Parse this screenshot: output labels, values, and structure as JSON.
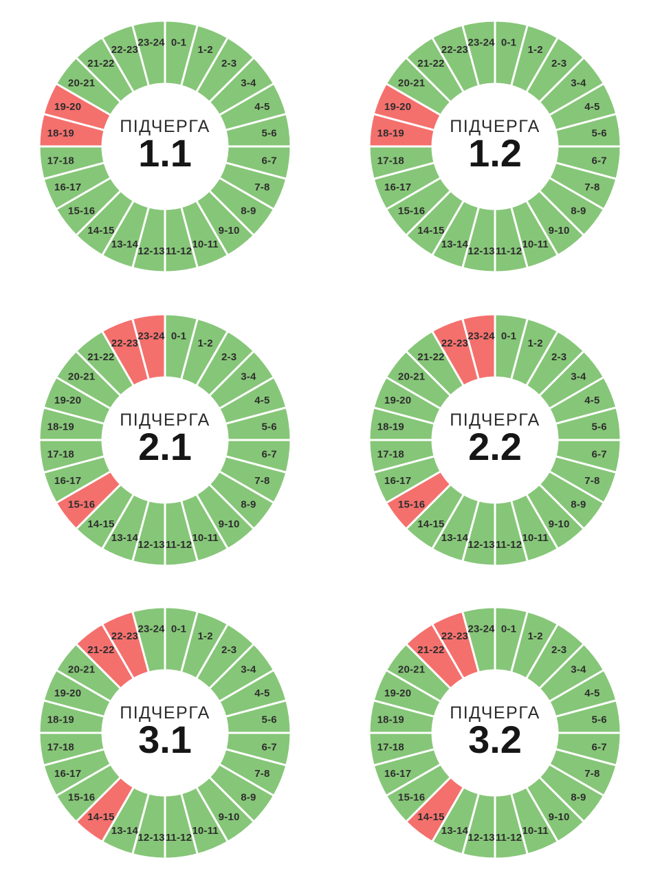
{
  "palette": {
    "power_on": "#86C678",
    "power_off": "#F4706D",
    "divider": "#FFFFFF",
    "hour_label_color": "#2D2D2D",
    "center_title_color": "#2B2B2B",
    "center_value_color": "#161616",
    "background": "#FFFFFF"
  },
  "hour_labels": [
    "0-1",
    "1-2",
    "2-3",
    "3-4",
    "4-5",
    "5-6",
    "6-7",
    "7-8",
    "8-9",
    "9-10",
    "10-11",
    "11-12",
    "12-13",
    "13-14",
    "14-15",
    "15-16",
    "16-17",
    "17-18",
    "18-19",
    "19-20",
    "20-21",
    "21-22",
    "22-23",
    "23-24"
  ],
  "chart_data": [
    {
      "type": "pie",
      "title": "ПІДЧЕРГА 1.1",
      "center_label": "ПІДЧЕРГА",
      "center_value": "1.1",
      "categories": [
        "0-1",
        "1-2",
        "2-3",
        "3-4",
        "4-5",
        "5-6",
        "6-7",
        "7-8",
        "8-9",
        "9-10",
        "10-11",
        "11-12",
        "12-13",
        "13-14",
        "14-15",
        "15-16",
        "16-17",
        "17-18",
        "18-19",
        "19-20",
        "20-21",
        "21-22",
        "22-23",
        "23-24"
      ],
      "values": [
        1,
        1,
        1,
        1,
        1,
        1,
        1,
        1,
        1,
        1,
        1,
        1,
        1,
        1,
        1,
        1,
        1,
        1,
        1,
        1,
        1,
        1,
        1,
        1
      ],
      "statuses": [
        "on",
        "on",
        "on",
        "on",
        "on",
        "on",
        "on",
        "on",
        "on",
        "on",
        "on",
        "on",
        "on",
        "on",
        "on",
        "on",
        "on",
        "on",
        "off",
        "off",
        "on",
        "on",
        "on",
        "on"
      ],
      "off_hours": [
        "18-19",
        "19-20"
      ]
    },
    {
      "type": "pie",
      "title": "ПІДЧЕРГА 1.2",
      "center_label": "ПІДЧЕРГА",
      "center_value": "1.2",
      "categories": [
        "0-1",
        "1-2",
        "2-3",
        "3-4",
        "4-5",
        "5-6",
        "6-7",
        "7-8",
        "8-9",
        "9-10",
        "10-11",
        "11-12",
        "12-13",
        "13-14",
        "14-15",
        "15-16",
        "16-17",
        "17-18",
        "18-19",
        "19-20",
        "20-21",
        "21-22",
        "22-23",
        "23-24"
      ],
      "values": [
        1,
        1,
        1,
        1,
        1,
        1,
        1,
        1,
        1,
        1,
        1,
        1,
        1,
        1,
        1,
        1,
        1,
        1,
        1,
        1,
        1,
        1,
        1,
        1
      ],
      "statuses": [
        "on",
        "on",
        "on",
        "on",
        "on",
        "on",
        "on",
        "on",
        "on",
        "on",
        "on",
        "on",
        "on",
        "on",
        "on",
        "on",
        "on",
        "on",
        "off",
        "off",
        "on",
        "on",
        "on",
        "on"
      ],
      "off_hours": [
        "18-19",
        "19-20"
      ]
    },
    {
      "type": "pie",
      "title": "ПІДЧЕРГА 2.1",
      "center_label": "ПІДЧЕРГА",
      "center_value": "2.1",
      "categories": [
        "0-1",
        "1-2",
        "2-3",
        "3-4",
        "4-5",
        "5-6",
        "6-7",
        "7-8",
        "8-9",
        "9-10",
        "10-11",
        "11-12",
        "12-13",
        "13-14",
        "14-15",
        "15-16",
        "16-17",
        "17-18",
        "18-19",
        "19-20",
        "20-21",
        "21-22",
        "22-23",
        "23-24"
      ],
      "values": [
        1,
        1,
        1,
        1,
        1,
        1,
        1,
        1,
        1,
        1,
        1,
        1,
        1,
        1,
        1,
        1,
        1,
        1,
        1,
        1,
        1,
        1,
        1,
        1
      ],
      "statuses": [
        "on",
        "on",
        "on",
        "on",
        "on",
        "on",
        "on",
        "on",
        "on",
        "on",
        "on",
        "on",
        "on",
        "on",
        "on",
        "off",
        "on",
        "on",
        "on",
        "on",
        "on",
        "on",
        "off",
        "off"
      ],
      "off_hours": [
        "15-16",
        "22-23",
        "23-24"
      ]
    },
    {
      "type": "pie",
      "title": "ПІДЧЕРГА 2.2",
      "center_label": "ПІДЧЕРГА",
      "center_value": "2.2",
      "categories": [
        "0-1",
        "1-2",
        "2-3",
        "3-4",
        "4-5",
        "5-6",
        "6-7",
        "7-8",
        "8-9",
        "9-10",
        "10-11",
        "11-12",
        "12-13",
        "13-14",
        "14-15",
        "15-16",
        "16-17",
        "17-18",
        "18-19",
        "19-20",
        "20-21",
        "21-22",
        "22-23",
        "23-24"
      ],
      "values": [
        1,
        1,
        1,
        1,
        1,
        1,
        1,
        1,
        1,
        1,
        1,
        1,
        1,
        1,
        1,
        1,
        1,
        1,
        1,
        1,
        1,
        1,
        1,
        1
      ],
      "statuses": [
        "on",
        "on",
        "on",
        "on",
        "on",
        "on",
        "on",
        "on",
        "on",
        "on",
        "on",
        "on",
        "on",
        "on",
        "on",
        "off",
        "on",
        "on",
        "on",
        "on",
        "on",
        "on",
        "off",
        "off"
      ],
      "off_hours": [
        "15-16",
        "22-23",
        "23-24"
      ]
    },
    {
      "type": "pie",
      "title": "ПІДЧЕРГА 3.1",
      "center_label": "ПІДЧЕРГА",
      "center_value": "3.1",
      "categories": [
        "0-1",
        "1-2",
        "2-3",
        "3-4",
        "4-5",
        "5-6",
        "6-7",
        "7-8",
        "8-9",
        "9-10",
        "10-11",
        "11-12",
        "12-13",
        "13-14",
        "14-15",
        "15-16",
        "16-17",
        "17-18",
        "18-19",
        "19-20",
        "20-21",
        "21-22",
        "22-23",
        "23-24"
      ],
      "values": [
        1,
        1,
        1,
        1,
        1,
        1,
        1,
        1,
        1,
        1,
        1,
        1,
        1,
        1,
        1,
        1,
        1,
        1,
        1,
        1,
        1,
        1,
        1,
        1
      ],
      "statuses": [
        "on",
        "on",
        "on",
        "on",
        "on",
        "on",
        "on",
        "on",
        "on",
        "on",
        "on",
        "on",
        "on",
        "on",
        "off",
        "on",
        "on",
        "on",
        "on",
        "on",
        "on",
        "off",
        "off",
        "on"
      ],
      "off_hours": [
        "14-15",
        "21-22",
        "22-23"
      ]
    },
    {
      "type": "pie",
      "title": "ПІДЧЕРГА 3.2",
      "center_label": "ПІДЧЕРГА",
      "center_value": "3.2",
      "categories": [
        "0-1",
        "1-2",
        "2-3",
        "3-4",
        "4-5",
        "5-6",
        "6-7",
        "7-8",
        "8-9",
        "9-10",
        "10-11",
        "11-12",
        "12-13",
        "13-14",
        "14-15",
        "15-16",
        "16-17",
        "17-18",
        "18-19",
        "19-20",
        "20-21",
        "21-22",
        "22-23",
        "23-24"
      ],
      "values": [
        1,
        1,
        1,
        1,
        1,
        1,
        1,
        1,
        1,
        1,
        1,
        1,
        1,
        1,
        1,
        1,
        1,
        1,
        1,
        1,
        1,
        1,
        1,
        1
      ],
      "statuses": [
        "on",
        "on",
        "on",
        "on",
        "on",
        "on",
        "on",
        "on",
        "on",
        "on",
        "on",
        "on",
        "on",
        "on",
        "off",
        "on",
        "on",
        "on",
        "on",
        "on",
        "on",
        "off",
        "off",
        "on"
      ],
      "off_hours": [
        "14-15",
        "21-22",
        "22-23"
      ]
    }
  ]
}
